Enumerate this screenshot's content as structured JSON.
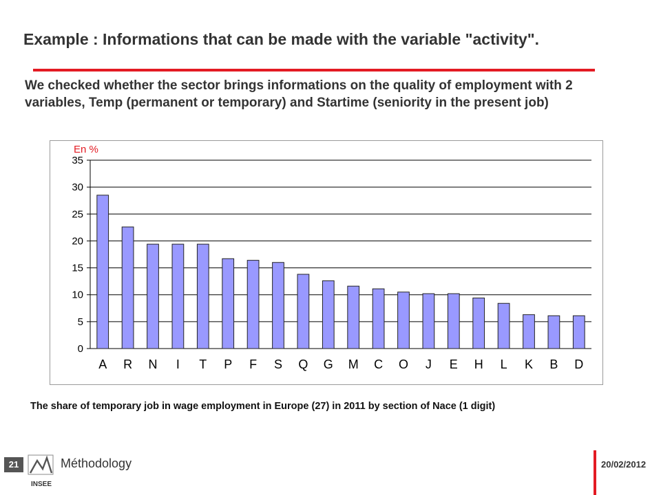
{
  "slide": {
    "title": "Example : Informations that can be made with the variable \"activity\".",
    "intro": "We checked whether the sector brings informations on the quality of employment with 2 variables, Temp (permanent or temporary) and Startime (seniority in the present job)",
    "caption": "The share of temporary job in wage employment in Europe (27) in 2011 by section of Nace (1 digit)",
    "page_number": "21",
    "section": "Méthodology",
    "date": "20/02/2012",
    "logo_text": "INSEE",
    "colors": {
      "accent": "#e31b23",
      "badge": "#555555",
      "bar_fill": "#9999ff",
      "bar_stroke": "#222222"
    }
  },
  "chart_data": {
    "type": "bar",
    "ylabel": "En %",
    "ylim": [
      0,
      35
    ],
    "yticks": [
      0,
      5,
      10,
      15,
      20,
      25,
      30,
      35
    ],
    "grid": true,
    "categories": [
      "A",
      "R",
      "N",
      "I",
      "T",
      "P",
      "F",
      "S",
      "Q",
      "G",
      "M",
      "C",
      "O",
      "J",
      "E",
      "H",
      "L",
      "K",
      "B",
      "D"
    ],
    "values": [
      28.5,
      22.6,
      19.4,
      19.4,
      19.4,
      16.7,
      16.4,
      16.0,
      13.8,
      12.6,
      11.6,
      11.1,
      10.5,
      10.2,
      10.2,
      9.4,
      8.4,
      6.3,
      6.1,
      6.1
    ]
  }
}
